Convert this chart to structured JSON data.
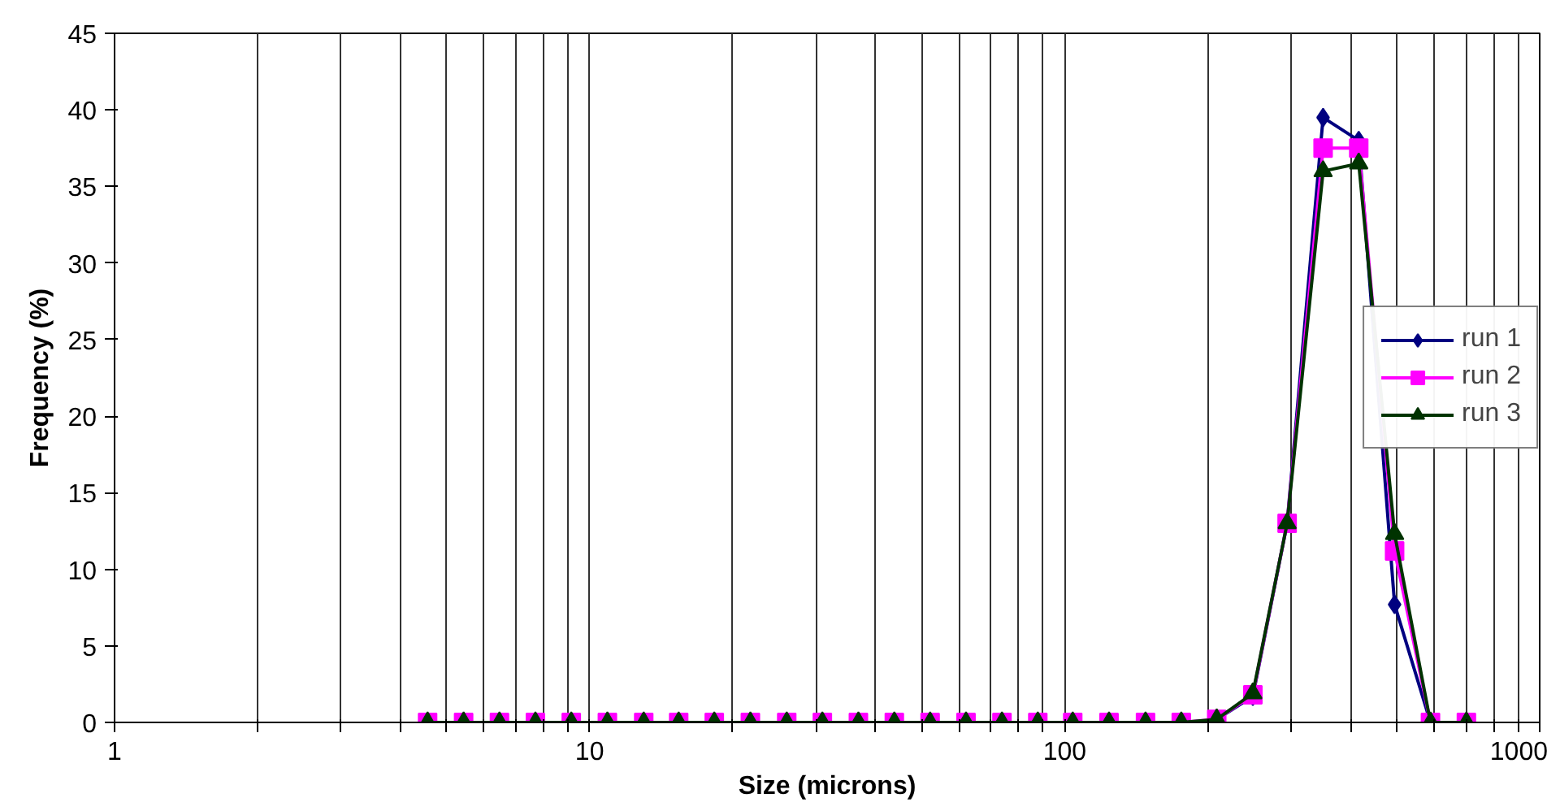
{
  "chart_data": {
    "type": "line",
    "xlabel": "Size (microns)",
    "ylabel": "Frequency (%)",
    "log": "x",
    "x": [
      4.56,
      5.43,
      6.46,
      7.69,
      9.15,
      10.9,
      13.0,
      15.4,
      18.3,
      21.8,
      26.0,
      30.9,
      36.8,
      43.8,
      52.1,
      62.0,
      73.8,
      87.8,
      104,
      124,
      148,
      176,
      209,
      249,
      294,
      350,
      416,
      495,
      589,
      701
    ],
    "xlim": [
      1,
      1000
    ],
    "xticks": [
      1,
      {
        "value": 2,
        "label": null
      },
      {
        "value": 3,
        "label": null
      },
      {
        "value": 4,
        "label": null
      },
      {
        "value": 5,
        "label": null
      },
      {
        "value": 6,
        "label": null
      },
      {
        "value": 7,
        "label": null
      },
      {
        "value": 8,
        "label": null
      },
      {
        "value": 9,
        "label": null
      },
      10,
      {
        "value": 20,
        "label": null
      },
      {
        "value": 30,
        "label": null
      },
      {
        "value": 40,
        "label": null
      },
      {
        "value": 50,
        "label": null
      },
      {
        "value": 60,
        "label": null
      },
      {
        "value": 70,
        "label": null
      },
      {
        "value": 80,
        "label": null
      },
      {
        "value": 90,
        "label": null
      },
      100,
      {
        "value": 200,
        "label": null
      },
      {
        "value": 300,
        "label": null
      },
      {
        "value": 400,
        "label": null
      },
      {
        "value": 500,
        "label": null
      },
      {
        "value": 600,
        "label": null
      },
      {
        "value": 700,
        "label": null
      },
      {
        "value": 800,
        "label": null
      },
      {
        "value": 900,
        "label": null
      },
      1000
    ],
    "ylim": [
      0,
      45
    ],
    "yticks": [
      0,
      5,
      10,
      15,
      20,
      25,
      30,
      35,
      40,
      45
    ],
    "grid": "x",
    "legend": "right",
    "series": [
      {
        "name": "run 1",
        "color": "#000080",
        "marker": "diamond",
        "values": [
          null,
          null,
          null,
          null,
          null,
          null,
          null,
          null,
          null,
          null,
          null,
          null,
          null,
          null,
          null,
          null,
          null,
          null,
          null,
          null,
          null,
          null,
          0.2,
          1.7,
          13,
          39.5,
          38,
          7.7,
          0,
          null
        ]
      },
      {
        "name": "run 2",
        "color": "#ff00ff",
        "marker": "square",
        "values": [
          0,
          0,
          0,
          0,
          0,
          0,
          0,
          0,
          0,
          0,
          0,
          0,
          0,
          0,
          0,
          0,
          0,
          0,
          0,
          0,
          0,
          0,
          0.2,
          1.8,
          13,
          37.5,
          37.5,
          11.2,
          0,
          0
        ]
      },
      {
        "name": "run 3",
        "color": "#003300",
        "marker": "triangle",
        "values": [
          0,
          0,
          0,
          0,
          0,
          0,
          0,
          0,
          0,
          0,
          0,
          0,
          0,
          0,
          0,
          0,
          0,
          0,
          0,
          0,
          0,
          0,
          0.2,
          1.9,
          13,
          36,
          36.5,
          12.3,
          0,
          0
        ]
      }
    ]
  }
}
